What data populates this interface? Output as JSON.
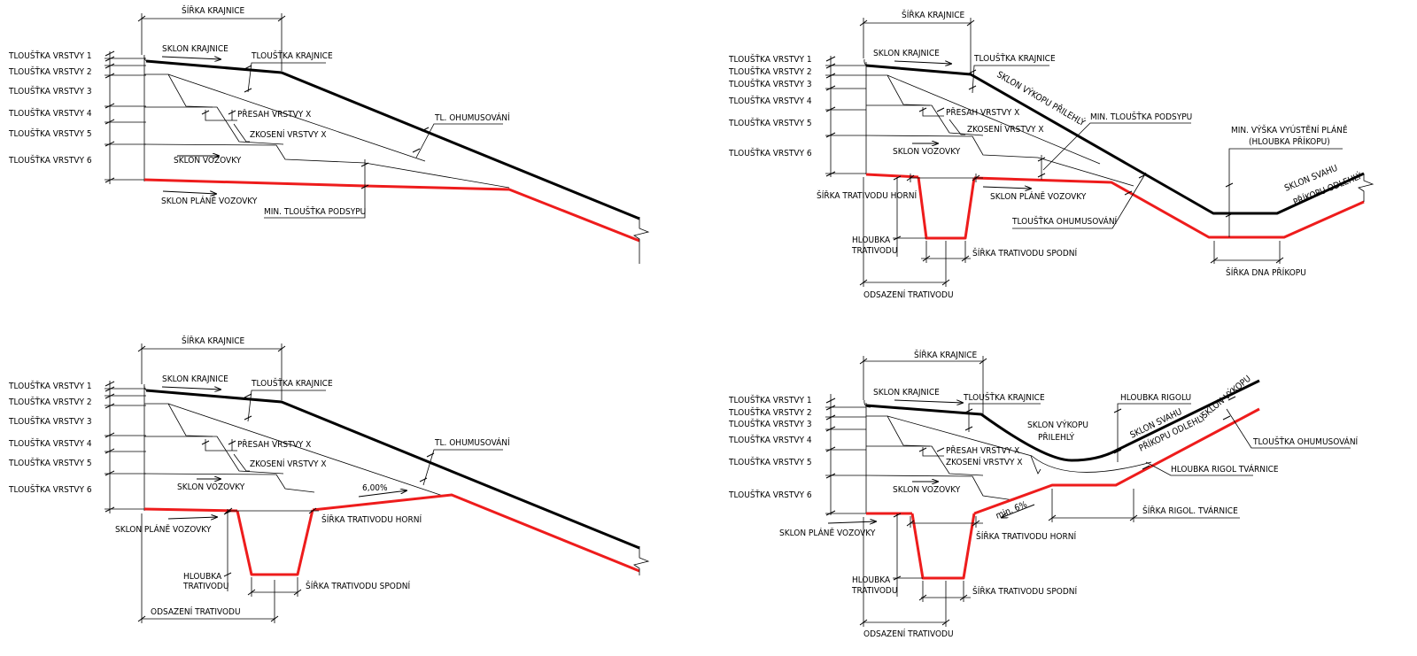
{
  "colors": {
    "structure": "#000000",
    "subgrade": "#ee1c1c",
    "background": "#ffffff"
  },
  "panels": {
    "p1": {
      "layers": [
        "TLOUŠŤKA VRSTVY 1",
        "TLOUŠŤKA VRSTVY 2",
        "TLOUŠŤKA VRSTVY 3",
        "TLOUŠŤKA VRSTVY 4",
        "TLOUŠŤKA VRSTVY 5",
        "TLOUŠŤKA VRSTVY 6"
      ],
      "labels": {
        "sirka_krajnice": "ŠÍŘKA KRAJNICE",
        "sklon_krajnice": "SKLON KRAJNICE",
        "tloustka_krajnice": "TLOUŠŤKA KRAJNICE",
        "presah": "PŘESAH VRSTVY X",
        "zkoseni": "ZKOSENÍ VRSTVY X",
        "sklon_vozovky": "SKLON VOZOVKY",
        "tl_ohumusovani": "TL. OHUMUSOVÁNÍ",
        "sklon_plane": "SKLON PLÁNĚ VOZOVKY",
        "min_podsyp": "MIN. TLOUŠŤKA PODSYPU"
      }
    },
    "p2": {
      "layers": [
        "TLOUŠŤKA VRSTVY 1",
        "TLOUŠŤKA VRSTVY 2",
        "TLOUŠŤKA VRSTVY 3",
        "TLOUŠŤKA VRSTVY 4",
        "TLOUŠŤKA VRSTVY 5",
        "TLOUŠŤKA VRSTVY 6"
      ],
      "labels": {
        "sirka_krajnice": "ŠÍŘKA KRAJNICE",
        "sklon_krajnice": "SKLON KRAJNICE",
        "tloustka_krajnice": "TLOUŠŤKA KRAJNICE",
        "sklon_vykopu": "SKLON VÝKOPU PŘILEHLÝ",
        "presah": "PŘESAH VRSTVY X",
        "min_podsyp": "MIN. TLOUŠŤKA PODSYPU",
        "zkoseni": "ZKOSENÍ VRSTVY X",
        "min_vyska_1": "MIN. VÝŠKA VYÚSTĚNÍ PLÁNĚ",
        "min_vyska_2": "(HLOUBKA PŘÍKOPU)",
        "sklon_vozovky": "SKLON VOZOVKY",
        "sklon_svahu_1": "SKLON SVAHU",
        "sklon_svahu_2": "PŘÍKOPU ODLEHLÝ",
        "sirka_trativodu_horni": "ŠÍŘKA TRATIVODU HORNÍ",
        "sklon_plane": "SKLON PLÁNĚ VOZOVKY",
        "tl_ohumusovani": "TLOUŠŤKA OHUMUSOVÁNÍ",
        "hloubka_1": "HLOUBKA",
        "hloubka_2": "TRATIVODU",
        "sirka_trativodu_spodni": "ŠÍŘKA TRATIVODU SPODNÍ",
        "sirka_dna": "ŠÍŘKA DNA PŘÍKOPU",
        "odsazeni": "ODSAZENÍ TRATIVODU"
      }
    },
    "p3": {
      "layers": [
        "TLOUŠŤKA VRSTVY 1",
        "TLOUŠŤKA VRSTVY 2",
        "TLOUŠŤKA VRSTVY 3",
        "TLOUŠŤKA VRSTVY 4",
        "TLOUŠŤKA VRSTVY 5",
        "TLOUŠŤKA VRSTVY 6"
      ],
      "labels": {
        "sirka_krajnice": "ŠÍŘKA KRAJNICE",
        "sklon_krajnice": "SKLON KRAJNICE",
        "tloustka_krajnice": "TLOUŠŤKA KRAJNICE",
        "presah": "PŘESAH VRSTVY X",
        "tl_ohumusovani": "TL. OHUMUSOVÁNÍ",
        "zkoseni": "ZKOSENÍ VRSTVY X",
        "sklon_vozovky": "SKLON VOZOVKY",
        "slope_value": "6,00%",
        "sirka_trativodu_horni": "ŠÍŘKA TRATIVODU HORNÍ",
        "sklon_plane": "SKLON PLÁNĚ VOZOVKY",
        "hloubka_1": "HLOUBKA",
        "hloubka_2": "TRATIVODU",
        "sirka_trativodu_spodni": "ŠÍŘKA TRATIVODU SPODNÍ",
        "odsazeni": "ODSAZENÍ TRATIVODU"
      }
    },
    "p4": {
      "layers": [
        "TLOUŠŤKA VRSTVY 1",
        "TLOUŠŤKA VRSTVY 2",
        "TLOUŠŤKA VRSTVY 3",
        "TLOUŠŤKA VRSTVY 4",
        "TLOUŠŤKA VRSTVY 5",
        "TLOUŠŤKA VRSTVY 6"
      ],
      "labels": {
        "sirka_krajnice": "ŠÍŘKA KRAJNICE",
        "sklon_krajnice": "SKLON KRAJNICE",
        "tloustka_krajnice": "TLOUŠŤKA KRAJNICE",
        "hloubka_rigolu": "HLOUBKA RIGOLU",
        "sklon_vykopu_1": "SKLON VÝKOPU",
        "sklon_vykopu_2": "PŘILEHLÝ",
        "sklon_svahu_1": "SKLON SVAHU",
        "sklon_svahu_2": "PŘÍKOPU ODLEHLÝ",
        "sklon_vykopu_r": "SKLON VÝKOPU",
        "tl_ohumusovani": "TLOUŠŤKA OHUMUSOVÁNÍ",
        "presah": "PŘESAH VRSTVY X",
        "zkoseni": "ZKOSENÍ VRSTVY X",
        "hloubka_rigol_tv": "HLOUBKA RIGOL TVÁRNICE",
        "sklon_vozovky": "SKLON VOZOVKY",
        "min6": "min. 6%",
        "sirka_rigol_tv": "ŠÍŘKA RIGOL. TVÁRNICE",
        "sklon_plane": "SKLON PLÁNĚ VOZOVKY",
        "sirka_trativodu_horni": "ŠÍŘKA TRATIVODU HORNÍ",
        "hloubka_1": "HLOUBKA",
        "hloubka_2": "TRATIVODU",
        "sirka_trativodu_spodni": "ŠÍŘKA TRATIVODU SPODNÍ",
        "odsazeni": "ODSAZENÍ TRATIVODU"
      }
    }
  }
}
